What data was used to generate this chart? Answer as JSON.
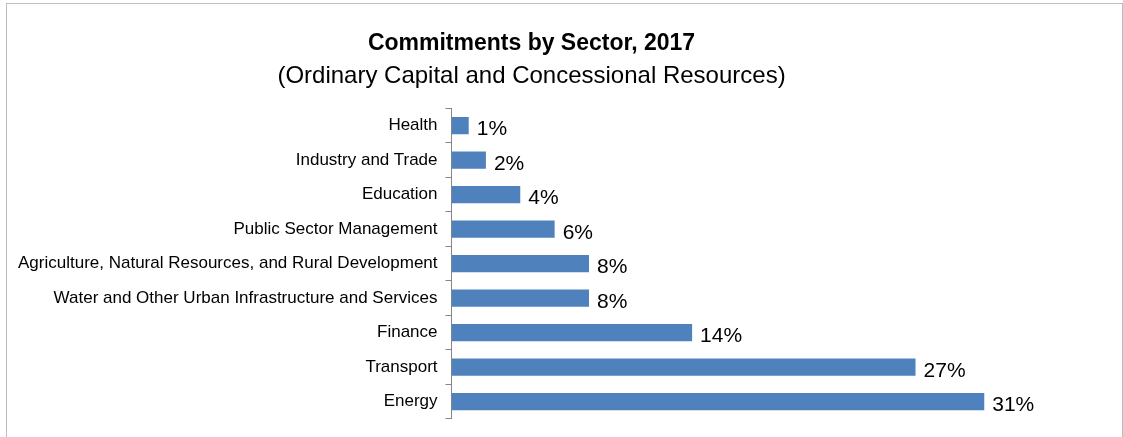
{
  "chart_data": {
    "type": "bar",
    "orientation": "horizontal",
    "title": "Commitments by Sector, 2017",
    "subtitle": "(Ordinary Capital and Concessional Resources)",
    "categories": [
      "Health",
      "Industry and Trade",
      "Education",
      "Public Sector Management",
      "Agriculture, Natural Resources, and Rural Development",
      "Water and Other Urban Infrastructure and Services",
      "Finance",
      "Transport",
      "Energy"
    ],
    "values": [
      1,
      2,
      4,
      6,
      8,
      8,
      14,
      27,
      31
    ],
    "value_labels": [
      "1%",
      "2%",
      "4%",
      "6%",
      "8%",
      "8%",
      "14%",
      "27%",
      "31%"
    ],
    "color": "#4f81bd",
    "legend": false,
    "tick_labels": "y"
  }
}
